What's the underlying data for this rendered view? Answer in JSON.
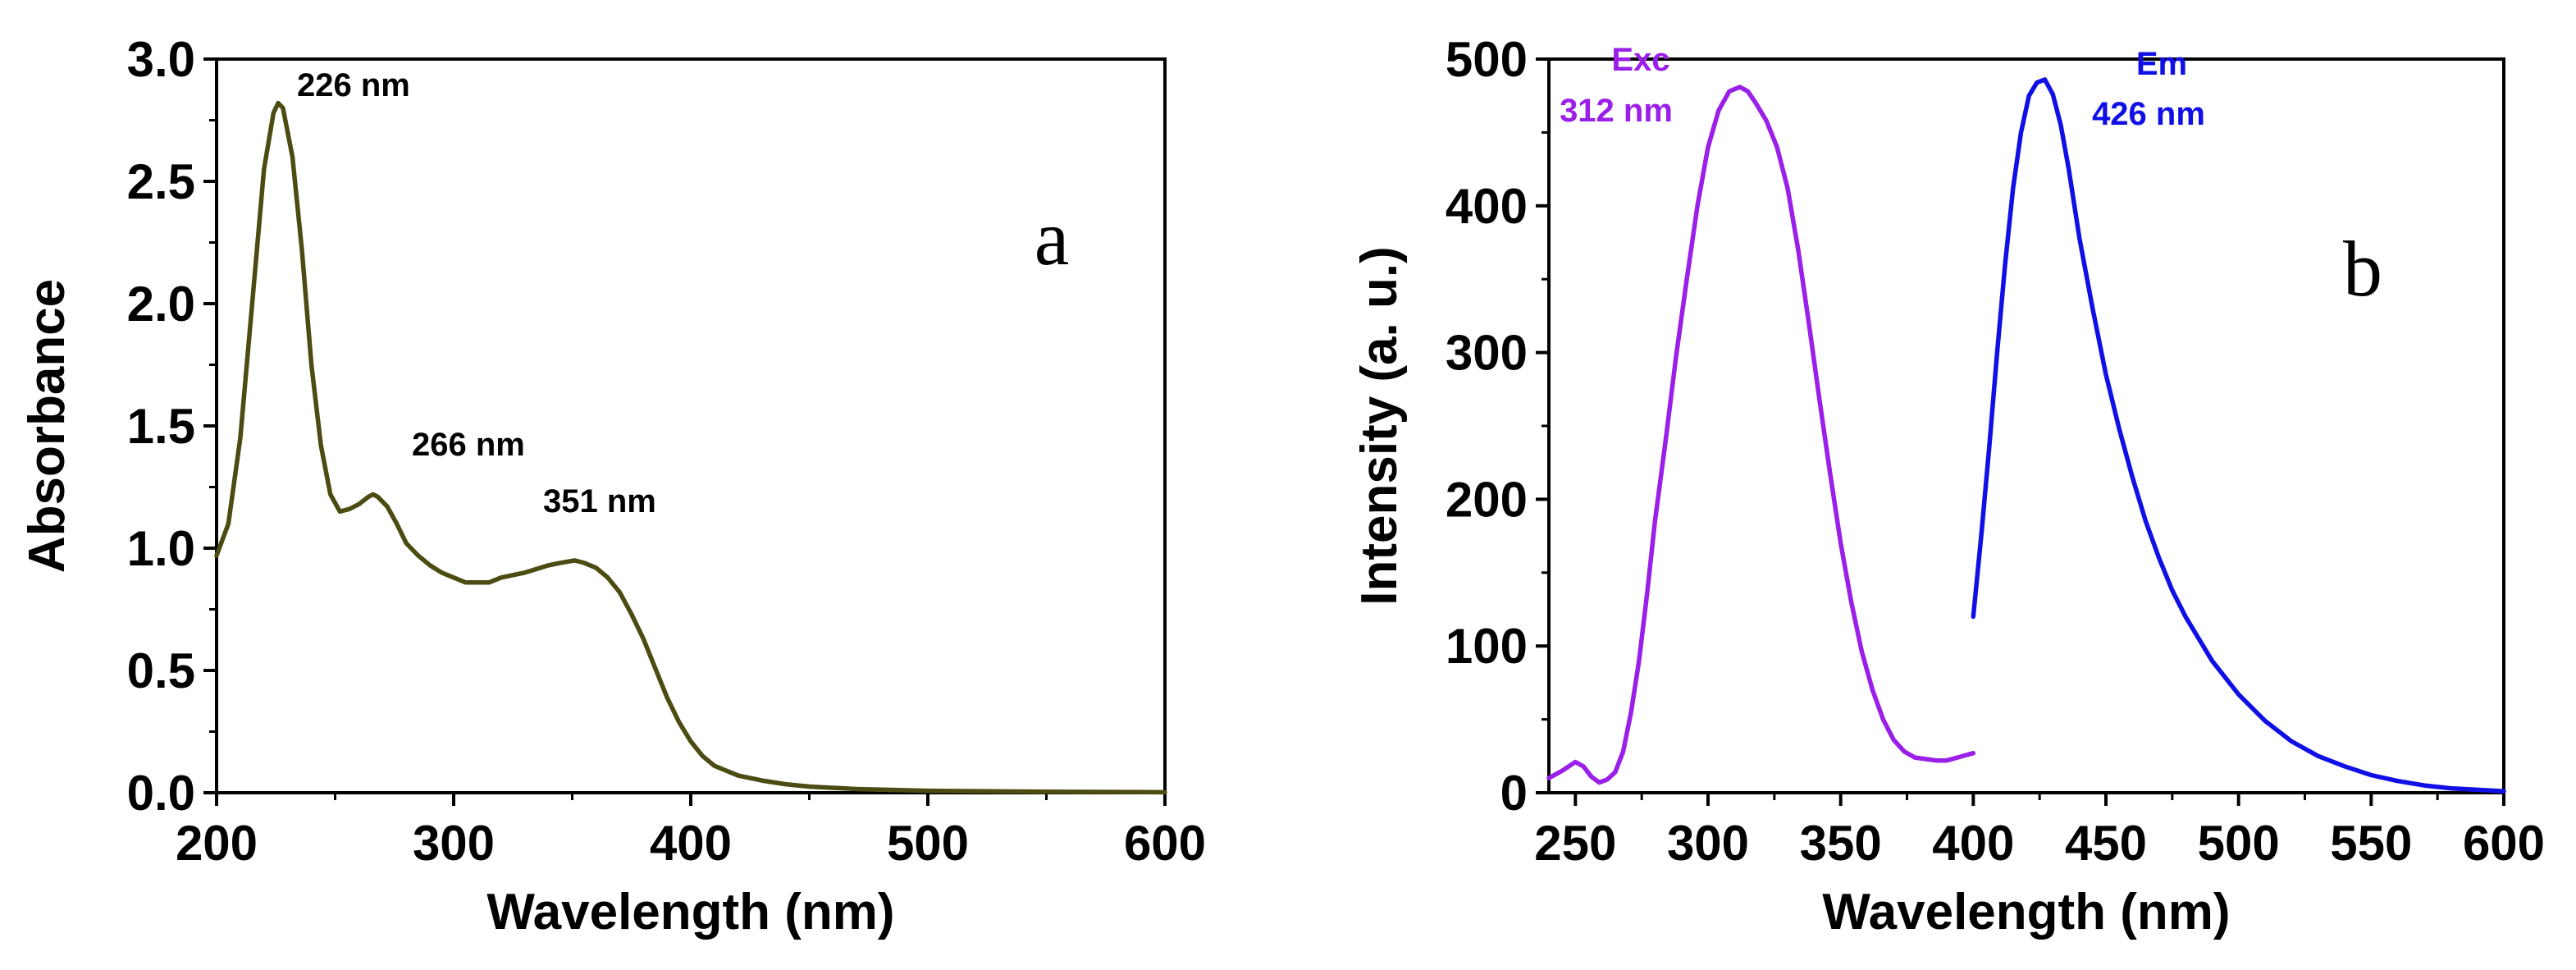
{
  "chart_data": [
    {
      "type": "line",
      "panel_label": "a",
      "xlabel": "Wavelength (nm)",
      "ylabel": "Absorbance",
      "xlim": [
        200,
        600
      ],
      "ylim": [
        0,
        3.0
      ],
      "x_ticks": [
        "200",
        "300",
        "400",
        "500",
        "600"
      ],
      "y_ticks": [
        "0.0",
        "0.5",
        "1.0",
        "1.5",
        "2.0",
        "2.5",
        "3.0"
      ],
      "annotations": [
        {
          "text": "226 nm",
          "x": 226,
          "y": 2.82
        },
        {
          "text": "266 nm",
          "x": 266,
          "y": 1.22
        },
        {
          "text": "351 nm",
          "x": 351,
          "y": 0.95
        }
      ],
      "series": [
        {
          "name": "Absorbance",
          "color": "#4b4b12",
          "x": [
            200,
            205,
            210,
            215,
            220,
            224,
            226,
            228,
            232,
            236,
            240,
            244,
            248,
            252,
            256,
            260,
            264,
            266,
            268,
            272,
            276,
            280,
            285,
            290,
            295,
            300,
            305,
            310,
            315,
            320,
            330,
            340,
            345,
            351,
            355,
            360,
            365,
            370,
            375,
            380,
            385,
            390,
            395,
            400,
            405,
            410,
            420,
            430,
            440,
            450,
            470,
            500,
            550,
            600
          ],
          "values": [
            0.97,
            1.1,
            1.45,
            2.0,
            2.55,
            2.78,
            2.82,
            2.8,
            2.6,
            2.22,
            1.75,
            1.42,
            1.22,
            1.15,
            1.16,
            1.18,
            1.21,
            1.22,
            1.21,
            1.17,
            1.1,
            1.02,
            0.97,
            0.93,
            0.9,
            0.88,
            0.86,
            0.86,
            0.86,
            0.88,
            0.9,
            0.93,
            0.94,
            0.95,
            0.94,
            0.92,
            0.88,
            0.82,
            0.73,
            0.63,
            0.51,
            0.39,
            0.29,
            0.21,
            0.15,
            0.11,
            0.07,
            0.05,
            0.035,
            0.025,
            0.015,
            0.008,
            0.004,
            0.002
          ]
        }
      ]
    },
    {
      "type": "line",
      "panel_label": "b",
      "xlabel": "Wavelength (nm)",
      "ylabel": "Intensity (a. u.)",
      "xlim": [
        240,
        600
      ],
      "ylim": [
        0,
        500
      ],
      "x_ticks": [
        "250",
        "300",
        "350",
        "400",
        "450",
        "500",
        "550",
        "600"
      ],
      "y_ticks": [
        "0",
        "100",
        "200",
        "300",
        "400",
        "500"
      ],
      "annotations": [
        {
          "text": "Exc",
          "series": "Exc"
        },
        {
          "text": "312 nm",
          "series": "Exc"
        },
        {
          "text": "Em",
          "series": "Em"
        },
        {
          "text": "426 nm",
          "series": "Em"
        }
      ],
      "series": [
        {
          "name": "Exc",
          "color": "#9a1fe8",
          "x": [
            240,
            245,
            250,
            253,
            256,
            259,
            262,
            265,
            268,
            271,
            274,
            277,
            280,
            284,
            288,
            292,
            296,
            300,
            304,
            308,
            312,
            315,
            318,
            322,
            326,
            330,
            334,
            338,
            342,
            346,
            350,
            354,
            358,
            362,
            366,
            370,
            374,
            378,
            382,
            386,
            390,
            394,
            398,
            400
          ],
          "values": [
            10,
            15,
            21,
            18,
            11,
            7,
            9,
            14,
            28,
            55,
            90,
            135,
            185,
            240,
            298,
            350,
            400,
            440,
            465,
            478,
            481,
            478,
            470,
            458,
            440,
            412,
            370,
            320,
            268,
            218,
            170,
            130,
            96,
            70,
            50,
            36,
            28,
            24,
            23,
            22,
            22,
            24,
            26,
            27
          ]
        },
        {
          "name": "Em",
          "color": "#1010e6",
          "x": [
            400,
            403,
            406,
            409,
            412,
            415,
            418,
            421,
            424,
            427,
            430,
            433,
            436,
            440,
            445,
            450,
            455,
            460,
            465,
            470,
            475,
            480,
            490,
            500,
            510,
            520,
            530,
            540,
            550,
            560,
            570,
            580,
            590,
            600
          ],
          "values": [
            120,
            175,
            235,
            300,
            360,
            412,
            450,
            475,
            484,
            486,
            476,
            455,
            425,
            378,
            330,
            285,
            248,
            215,
            185,
            160,
            138,
            120,
            90,
            67,
            49,
            35,
            25,
            18,
            12,
            8,
            5,
            3,
            2,
            1
          ]
        }
      ]
    }
  ]
}
